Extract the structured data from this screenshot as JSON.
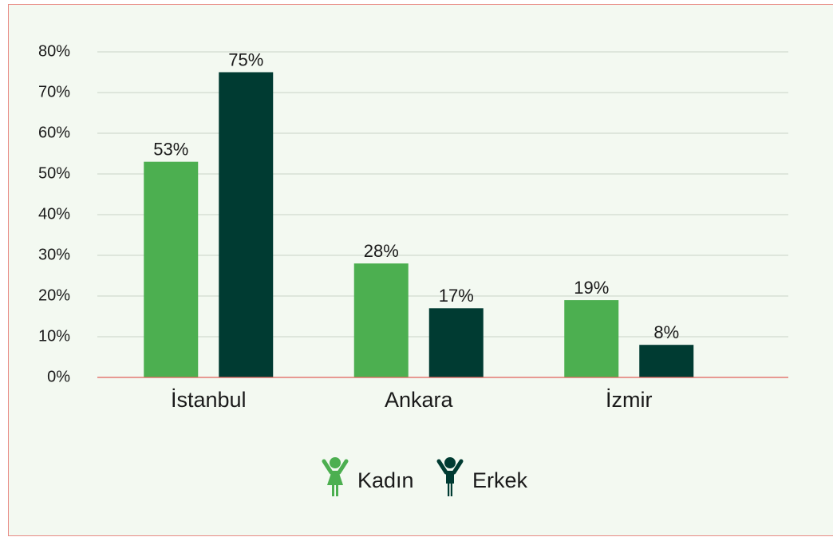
{
  "chart_data": {
    "type": "bar",
    "categories": [
      "İstanbul",
      "Ankara",
      "İzmir"
    ],
    "series": [
      {
        "name": "Kadın",
        "color": "#4caf50",
        "values": [
          53,
          28,
          19
        ],
        "value_labels": [
          "53%",
          "28%",
          "19%"
        ]
      },
      {
        "name": "Erkek",
        "color": "#003b32",
        "values": [
          75,
          17,
          8
        ],
        "value_labels": [
          "75%",
          "17%",
          "8%"
        ]
      }
    ],
    "ylim": [
      0,
      80
    ],
    "yticks": [
      {
        "value": 0,
        "label": "0%"
      },
      {
        "value": 10,
        "label": "10%"
      },
      {
        "value": 20,
        "label": "20%"
      },
      {
        "value": 30,
        "label": "30%"
      },
      {
        "value": 40,
        "label": "40%"
      },
      {
        "value": 50,
        "label": "50%"
      },
      {
        "value": 60,
        "label": "60%"
      },
      {
        "value": 70,
        "label": "70%"
      },
      {
        "value": 80,
        "label": "80%"
      }
    ],
    "grid": true,
    "legend": "bottom"
  }
}
